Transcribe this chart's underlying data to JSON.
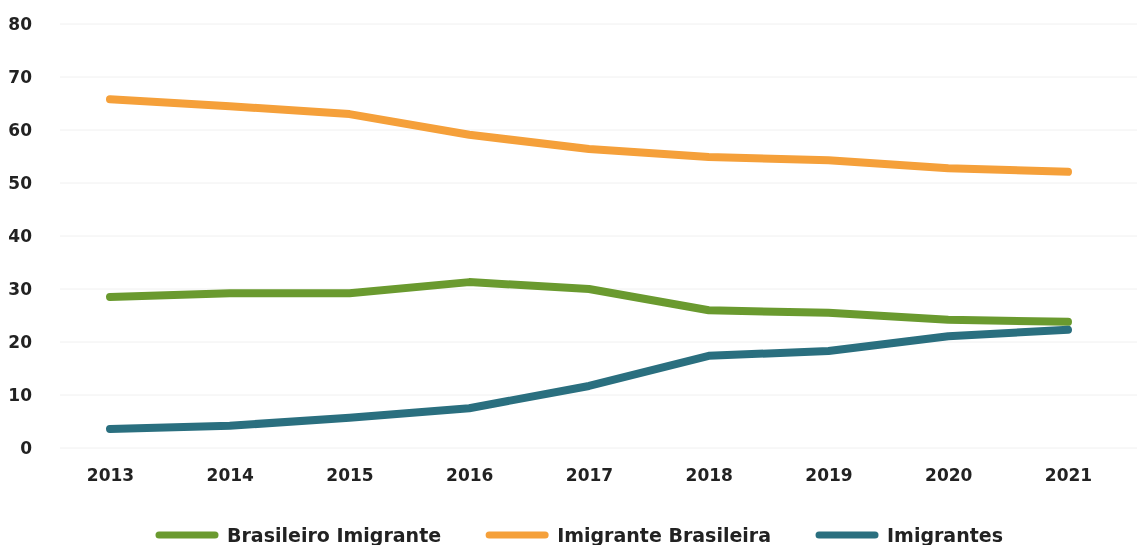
{
  "chart_data": {
    "type": "line",
    "categories": [
      "2013",
      "2014",
      "2015",
      "2016",
      "2017",
      "2018",
      "2019",
      "2020",
      "2021"
    ],
    "series": [
      {
        "name": "Brasileiro Imigrante",
        "color": "#6a9a2f",
        "values": [
          28.5,
          29.2,
          29.2,
          31.3,
          30.0,
          26.0,
          25.5,
          24.2,
          23.8
        ]
      },
      {
        "name": "Imigrante Brasileira",
        "color": "#f5a03a",
        "values": [
          65.8,
          64.5,
          63.0,
          59.1,
          56.4,
          54.9,
          54.3,
          52.8,
          52.1
        ]
      },
      {
        "name": "Imigrantes",
        "color": "#2a6f7f",
        "values": [
          3.6,
          4.2,
          5.7,
          7.5,
          11.7,
          17.4,
          18.3,
          21.1,
          22.3
        ]
      }
    ],
    "ylim": [
      0,
      80
    ],
    "yticks": [
      0,
      10,
      20,
      30,
      40,
      50,
      60,
      70,
      80
    ],
    "grid": "y",
    "legend": "bottom",
    "marker": "none",
    "line_style": "solid"
  }
}
